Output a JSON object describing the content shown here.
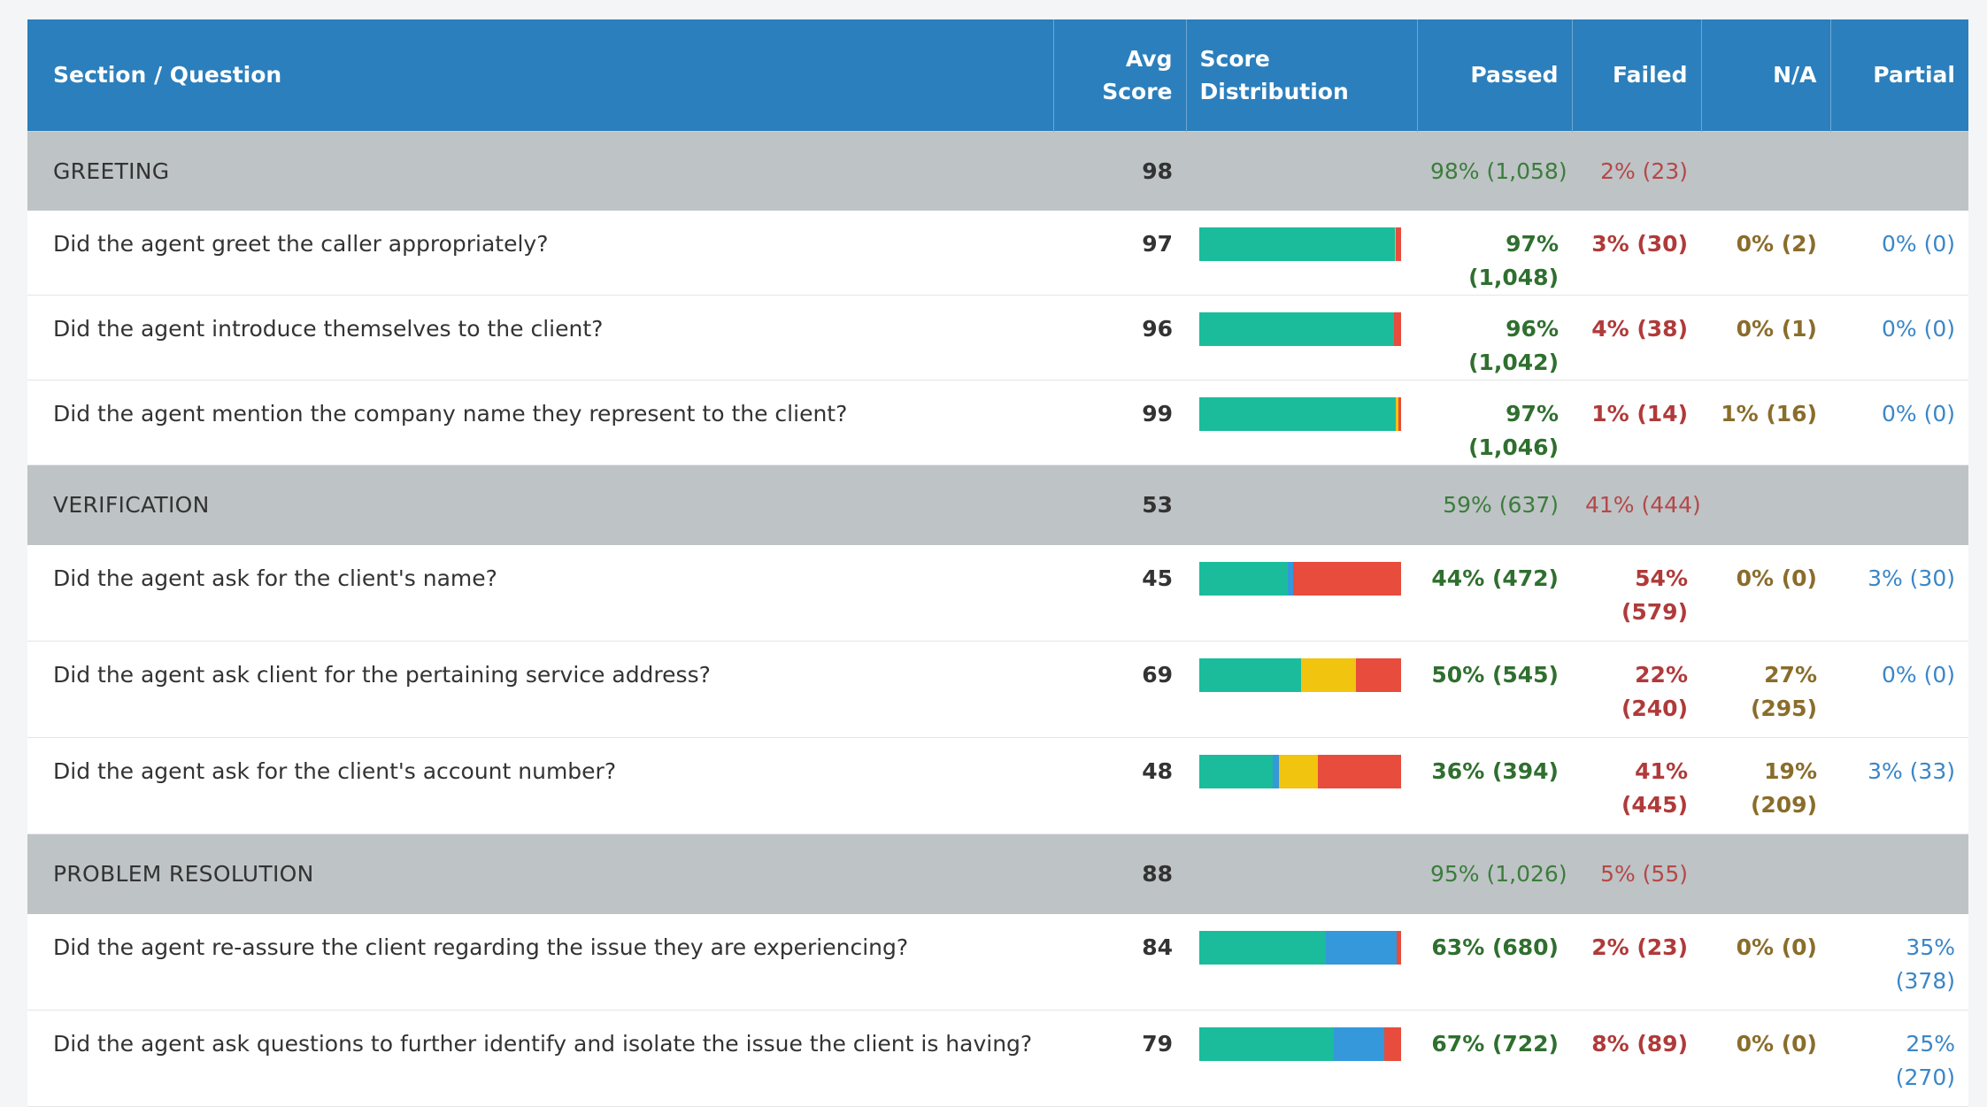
{
  "colors": {
    "header_bg": "#2b7fbc",
    "section_bg": "#bec3c6",
    "passed": "#1abc9c",
    "partial": "#3498db",
    "na": "#f1c40f",
    "failed": "#e74c3c"
  },
  "header": {
    "question": "Section / Question",
    "avg_line1": "Avg",
    "avg_line2": "Score",
    "distribution": "Score Distribution",
    "passed": "Passed",
    "failed": "Failed",
    "na": "N/A",
    "partial": "Partial"
  },
  "sections": [
    {
      "name": "GREETING",
      "avg": "98",
      "passed": "98% (1,058)",
      "failed": "2% (23)",
      "questions": [
        {
          "text": "Did the agent greet the caller appropriately?",
          "avg": "97",
          "passed": "97% (1,048)",
          "failed": "3% (30)",
          "na": "0% (2)",
          "partial": "0% (0)",
          "dist": {
            "passed": 97.1,
            "partial": 0,
            "na": 0.2,
            "failed": 2.7
          }
        },
        {
          "text": "Did the agent introduce themselves to the client?",
          "avg": "96",
          "passed": "96% (1,042)",
          "failed": "4% (38)",
          "na": "0% (1)",
          "partial": "0% (0)",
          "dist": {
            "passed": 96.4,
            "partial": 0,
            "na": 0.1,
            "failed": 3.5
          }
        },
        {
          "text": "Did the agent mention the company name they represent to the client?",
          "avg": "99",
          "passed": "97% (1,046)",
          "failed": "1% (14)",
          "na": "1% (16)",
          "partial": "0% (0)",
          "dist": {
            "passed": 97.2,
            "partial": 0,
            "na": 1.5,
            "failed": 1.3
          }
        }
      ]
    },
    {
      "name": "VERIFICATION",
      "avg": "53",
      "passed": "59% (637)",
      "failed": "41% (444)",
      "questions": [
        {
          "text": "Did the agent ask for the client's name?",
          "avg": "45",
          "passed": "44% (472)",
          "failed_line1": "54%",
          "failed_line2": "(579)",
          "na": "0% (0)",
          "partial": "3% (30)",
          "dist": {
            "passed": 43.7,
            "partial": 2.8,
            "na": 0,
            "failed": 53.5
          }
        },
        {
          "text": "Did the agent ask client for the pertaining service address?",
          "avg": "69",
          "passed": "50% (545)",
          "failed_line1": "22%",
          "failed_line2": "(240)",
          "na_line1": "27%",
          "na_line2": "(295)",
          "partial": "0% (0)",
          "dist": {
            "passed": 50.5,
            "partial": 0,
            "na": 27.3,
            "failed": 22.2
          }
        },
        {
          "text": "Did the agent ask for the client's account number?",
          "avg": "48",
          "passed": "36% (394)",
          "failed_line1": "41%",
          "failed_line2": "(445)",
          "na_line1": "19%",
          "na_line2": "(209)",
          "partial": "3% (33)",
          "dist": {
            "passed": 36.4,
            "partial": 3.1,
            "na": 19.3,
            "failed": 41.2
          }
        }
      ]
    },
    {
      "name": "PROBLEM RESOLUTION",
      "avg": "88",
      "passed": "95% (1,026)",
      "failed": "5% (55)",
      "questions": [
        {
          "text": "Did the agent re-assure the client regarding the issue they are experiencing?",
          "avg": "84",
          "passed": "63% (680)",
          "failed": "2% (23)",
          "na": "0% (0)",
          "partial_line1": "35%",
          "partial_line2": "(378)",
          "dist": {
            "passed": 62.9,
            "partial": 35.0,
            "na": 0,
            "failed": 2.1
          }
        },
        {
          "text": "Did the agent ask questions to further identify and isolate the issue the client is having?",
          "avg": "79",
          "passed": "67% (722)",
          "failed": "8% (89)",
          "na": "0% (0)",
          "partial_line1": "25%",
          "partial_line2": "(270)",
          "dist": {
            "passed": 66.8,
            "partial": 25.0,
            "na": 0,
            "failed": 8.2
          }
        }
      ]
    }
  ]
}
